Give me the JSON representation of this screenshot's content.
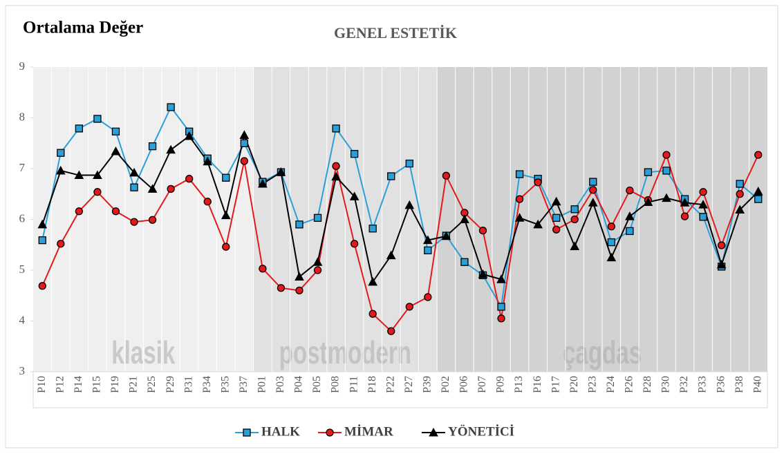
{
  "chart_data": {
    "type": "line",
    "title": "GENEL ESTETİK",
    "y_label": "Ortalama Değer",
    "categories": [
      "P10",
      "P12",
      "P14",
      "P15",
      "P19",
      "P21",
      "P25",
      "P29",
      "P31",
      "P34",
      "P35",
      "P37",
      "P01",
      "P03",
      "P04",
      "P05",
      "P08",
      "P11",
      "P18",
      "P22",
      "P27",
      "P39",
      "P02",
      "P06",
      "P07",
      "P09",
      "P13",
      "P16",
      "P17",
      "P20",
      "P23",
      "P24",
      "P26",
      "P28",
      "P30",
      "P32",
      "P33",
      "P36",
      "P38",
      "P40"
    ],
    "regions": [
      {
        "label": "klasik",
        "from": "P10",
        "to": "P37",
        "color": "#efefef",
        "text_color": "#c9c9c9"
      },
      {
        "label": "postmodern",
        "from": "P01",
        "to": "P39",
        "color": "#e1e1e1",
        "text_color": "#c4c4c4"
      },
      {
        "label": "çagdas",
        "from": "P02",
        "to": "P40",
        "color": "#d2d2d2",
        "text_color": "#bcbcbc"
      }
    ],
    "series": [
      {
        "name": "HALK",
        "color": "#2b9fd8",
        "marker": "square",
        "values": [
          5.59,
          7.31,
          7.79,
          7.98,
          7.73,
          6.63,
          7.44,
          8.21,
          7.73,
          7.2,
          6.82,
          7.5,
          6.74,
          6.93,
          5.9,
          6.03,
          7.79,
          7.29,
          5.82,
          6.85,
          7.1,
          5.39,
          5.68,
          5.16,
          4.9,
          4.28,
          6.89,
          6.8,
          6.03,
          6.2,
          6.74,
          5.55,
          5.77,
          6.93,
          6.96,
          6.4,
          6.05,
          5.07,
          6.7,
          6.4
        ]
      },
      {
        "name": "MİMAR",
        "color": "#e3191c",
        "marker": "circle",
        "values": [
          4.69,
          5.52,
          6.16,
          6.54,
          6.16,
          5.95,
          5.99,
          6.6,
          6.8,
          6.35,
          5.46,
          7.15,
          5.03,
          4.65,
          4.6,
          5.0,
          7.05,
          5.52,
          4.14,
          3.8,
          4.28,
          4.47,
          6.86,
          6.13,
          5.78,
          4.05,
          6.4,
          6.73,
          5.8,
          6.0,
          6.58,
          5.86,
          6.57,
          6.38,
          7.27,
          6.06,
          6.54,
          5.49,
          6.5,
          7.27
        ]
      },
      {
        "name": "YÖNETİCİ",
        "color": "#000000",
        "marker": "triangle",
        "values": [
          5.9,
          6.96,
          6.87,
          6.87,
          7.34,
          6.92,
          6.6,
          7.37,
          7.64,
          7.14,
          6.08,
          7.66,
          6.7,
          6.93,
          4.87,
          5.16,
          6.84,
          6.45,
          4.77,
          5.29,
          6.28,
          5.59,
          5.67,
          6.0,
          4.92,
          4.82,
          6.03,
          5.9,
          6.35,
          5.47,
          6.33,
          5.25,
          6.06,
          6.34,
          6.42,
          6.33,
          6.29,
          5.11,
          6.19,
          6.55
        ]
      }
    ],
    "ylim": [
      3,
      9
    ],
    "yticks": [
      3,
      4,
      5,
      6,
      7,
      8,
      9
    ],
    "grid": false,
    "legend": "bottom"
  }
}
